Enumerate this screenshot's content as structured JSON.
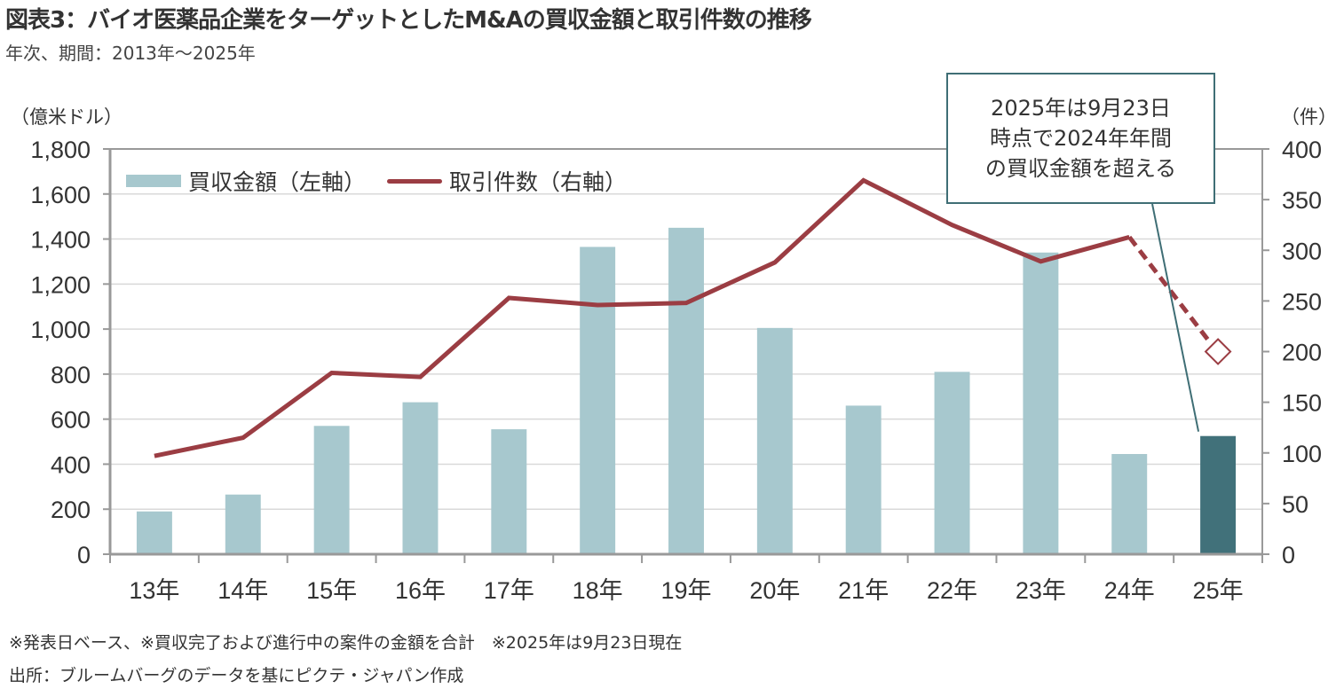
{
  "header": {
    "title": "図表3：バイオ医薬品企業をターゲットとしたM&Aの買収金額と取引件数の推移",
    "subtitle": "年次、期間：2013年～2025年"
  },
  "footer": {
    "note": "※発表日ベース、※買収完了および進行中の案件の金額を合計　※2025年は9月23日現在",
    "source": "出所：ブルームバーグのデータを基にピクテ・ジャパン作成"
  },
  "callout": {
    "lines": [
      "2025年は9月23日",
      "時点で2024年年間",
      "の買収金額を超える"
    ]
  },
  "colors": {
    "bar": "#a7c8ce",
    "bar_highlight": "#41717a",
    "line": "#9b3d43",
    "axis": "#999999",
    "grid": "#d9d9d9",
    "callout_border": "#3f6e75"
  },
  "chart_data": {
    "type": "bar+line",
    "title": "図表3：バイオ医薬品企業をターゲットとしたM&Aの買収金額と取引件数の推移",
    "subtitle": "年次、期間：2013年～2025年",
    "categories": [
      "13年",
      "14年",
      "15年",
      "16年",
      "17年",
      "18年",
      "19年",
      "20年",
      "21年",
      "22年",
      "23年",
      "24年",
      "25年"
    ],
    "ylabel_left": "（億米ドル）",
    "ylabel_right": "（件）",
    "ylim_left": [
      0,
      1800
    ],
    "ylim_right": [
      0,
      400
    ],
    "yticks_left": [
      "0",
      "200",
      "400",
      "600",
      "800",
      "1,000",
      "1,200",
      "1,400",
      "1,600",
      "1,800"
    ],
    "yticks_right": [
      "0",
      "50",
      "100",
      "150",
      "200",
      "250",
      "300",
      "350",
      "400"
    ],
    "grid": true,
    "legend_position": "top-left",
    "series": [
      {
        "name": "買収金額（左軸）",
        "type": "bar",
        "axis": "left",
        "values": [
          190,
          265,
          570,
          675,
          555,
          1365,
          1450,
          1005,
          660,
          810,
          1340,
          445,
          525
        ],
        "highlight_index": 12
      },
      {
        "name": "取引件数（右軸）",
        "type": "line",
        "axis": "right",
        "values": [
          97,
          115,
          179,
          175,
          253,
          246,
          248,
          288,
          369,
          325,
          289,
          313,
          200
        ],
        "dashed_from_index": 11,
        "last_point_marker": "hollow-diamond"
      }
    ],
    "annotations": [
      "2025年は9月23日時点で2024年年間の買収金額を超える"
    ]
  }
}
